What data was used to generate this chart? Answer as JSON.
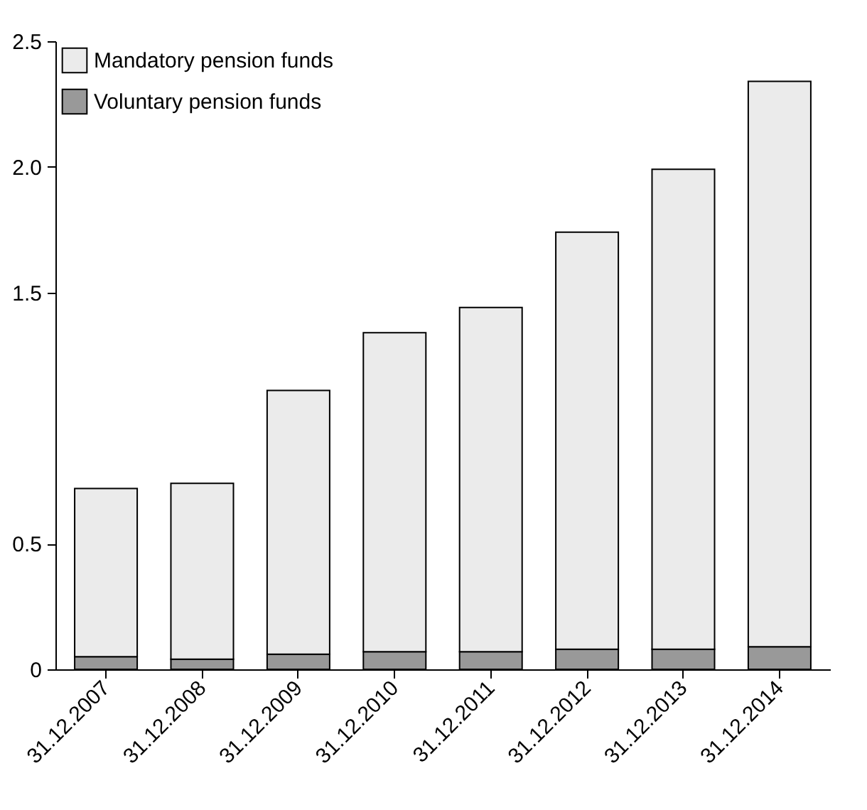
{
  "chart_data": {
    "type": "bar",
    "stacked": true,
    "categories": [
      "31.12.2007",
      "31.12.2008",
      "31.12.2009",
      "31.12.2010",
      "31.12.2011",
      "31.12.2012",
      "31.12.2013",
      "31.12.2014"
    ],
    "series": [
      {
        "name": "Voluntary pension funds",
        "color": "#999999",
        "values": [
          0.05,
          0.04,
          0.06,
          0.07,
          0.07,
          0.08,
          0.08,
          0.09
        ]
      },
      {
        "name": "Mandatory pension funds",
        "color": "#ebebeb",
        "values": [
          0.67,
          0.7,
          1.05,
          1.27,
          1.37,
          1.66,
          1.91,
          2.25
        ]
      }
    ],
    "ylim": [
      0,
      2.5
    ],
    "yticks": [
      0,
      0.5,
      1.5,
      {
        "value": 2,
        "label": "2.0"
      },
      2.5
    ],
    "grid": false,
    "legend": "top left"
  }
}
